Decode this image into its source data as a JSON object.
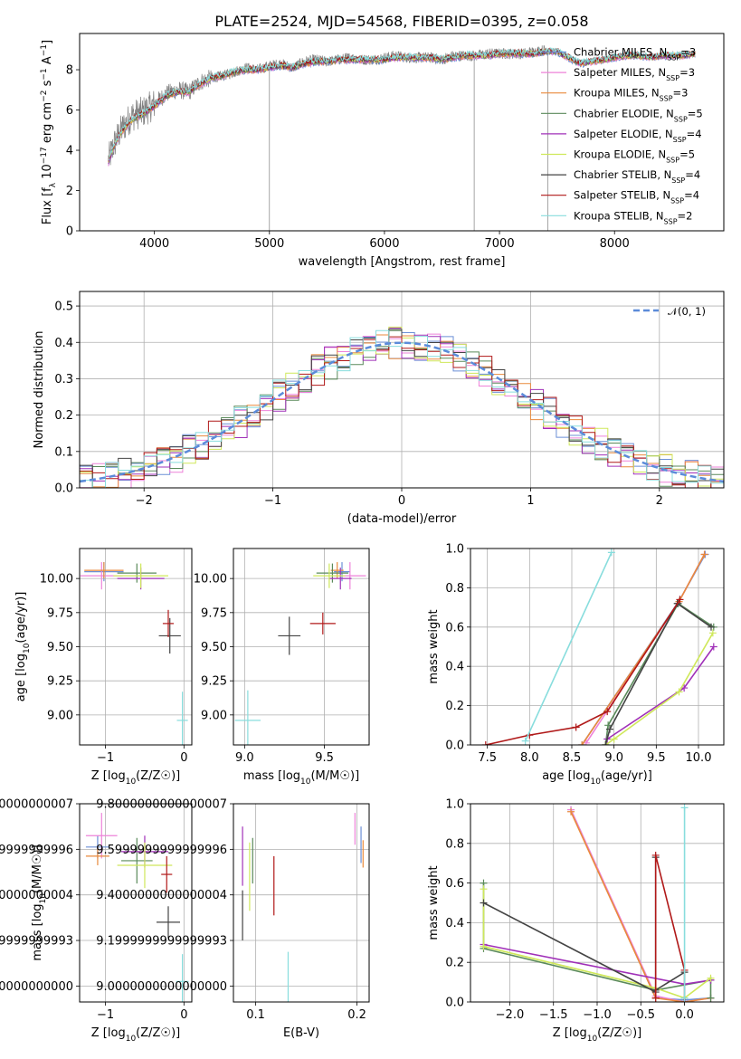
{
  "figure": {
    "title": "PLATE=2524, MJD=54568, FIBERID=0395, z=0.058"
  },
  "series": [
    {
      "name": "Chabrier MILES",
      "nssp": "3",
      "color": "#6b8fd6"
    },
    {
      "name": "Salpeter MILES",
      "nssp": "3",
      "color": "#ee82d9"
    },
    {
      "name": "Kroupa MILES",
      "nssp": "3",
      "color": "#e98a3c"
    },
    {
      "name": "Chabrier ELODIE",
      "nssp": "5",
      "color": "#5a8a5a"
    },
    {
      "name": "Salpeter ELODIE",
      "nssp": "4",
      "color": "#a030b8"
    },
    {
      "name": "Kroupa ELODIE",
      "nssp": "5",
      "color": "#cfe85a"
    },
    {
      "name": "Chabrier STELIB",
      "nssp": "4",
      "color": "#444444"
    },
    {
      "name": "Salpeter STELIB",
      "nssp": "4",
      "color": "#b01818"
    },
    {
      "name": "Kroupa STELIB",
      "nssp": "2",
      "color": "#88dddd"
    }
  ],
  "data_color": "#808080",
  "chart_data": [
    {
      "id": "spectrum",
      "type": "line",
      "xlabel": "wavelength [Angstrom, rest frame]",
      "ylabel": "Flux [f_λ 10^-17 erg cm^-2 s^-1 A^-1]",
      "xlim": [
        3350,
        8950
      ],
      "ylim": [
        0,
        9.8
      ],
      "xticks": [
        4000,
        5000,
        6000,
        7000,
        8000
      ],
      "yticks": [
        0,
        2,
        4,
        6,
        8
      ],
      "grid": false,
      "legend": "right",
      "data_curve": [
        [
          3600,
          3.5
        ],
        [
          3650,
          4.3
        ],
        [
          3700,
          4.9
        ],
        [
          3800,
          5.7
        ],
        [
          3900,
          5.9
        ],
        [
          4000,
          6.3
        ],
        [
          4100,
          6.8
        ],
        [
          4200,
          7.0
        ],
        [
          4300,
          6.9
        ],
        [
          4400,
          7.4
        ],
        [
          4500,
          7.6
        ],
        [
          4600,
          7.7
        ],
        [
          4700,
          7.9
        ],
        [
          4800,
          8.1
        ],
        [
          4900,
          8.0
        ],
        [
          5000,
          8.2
        ],
        [
          5100,
          8.3
        ],
        [
          5200,
          8.1
        ],
        [
          5300,
          8.4
        ],
        [
          5400,
          8.5
        ],
        [
          5500,
          8.4
        ],
        [
          5600,
          8.5
        ],
        [
          5700,
          8.6
        ],
        [
          5800,
          8.5
        ],
        [
          5900,
          8.5
        ],
        [
          6000,
          8.6
        ],
        [
          6100,
          8.7
        ],
        [
          6200,
          8.6
        ],
        [
          6300,
          8.6
        ],
        [
          6400,
          8.6
        ],
        [
          6500,
          8.5
        ],
        [
          6600,
          8.7
        ],
        [
          6700,
          8.7
        ],
        [
          6800,
          8.7
        ],
        [
          6900,
          8.8
        ],
        [
          7000,
          8.8
        ],
        [
          7100,
          8.8
        ],
        [
          7200,
          8.8
        ],
        [
          7300,
          8.9
        ],
        [
          7420,
          9.0
        ]
      ],
      "model_curve": [
        [
          3600,
          3.4
        ],
        [
          3650,
          4.2
        ],
        [
          3700,
          4.8
        ],
        [
          3800,
          5.5
        ],
        [
          3900,
          5.8
        ],
        [
          4000,
          6.2
        ],
        [
          4100,
          6.7
        ],
        [
          4200,
          6.9
        ],
        [
          4300,
          6.9
        ],
        [
          4400,
          7.3
        ],
        [
          4500,
          7.6
        ],
        [
          4600,
          7.7
        ],
        [
          4700,
          7.9
        ],
        [
          4800,
          8.0
        ],
        [
          4900,
          8.0
        ],
        [
          5000,
          8.1
        ],
        [
          5100,
          8.2
        ],
        [
          5200,
          8.1
        ],
        [
          5300,
          8.3
        ],
        [
          5400,
          8.4
        ],
        [
          5500,
          8.4
        ],
        [
          5600,
          8.5
        ],
        [
          5700,
          8.5
        ],
        [
          5800,
          8.5
        ],
        [
          5900,
          8.5
        ],
        [
          6000,
          8.5
        ],
        [
          6100,
          8.6
        ],
        [
          6200,
          8.6
        ],
        [
          6300,
          8.6
        ],
        [
          6400,
          8.6
        ],
        [
          6500,
          8.5
        ],
        [
          6600,
          8.6
        ],
        [
          6700,
          8.7
        ],
        [
          6800,
          8.7
        ],
        [
          6900,
          8.7
        ],
        [
          7000,
          8.8
        ],
        [
          7100,
          8.8
        ],
        [
          7200,
          8.8
        ],
        [
          7300,
          8.8
        ],
        [
          7400,
          8.9
        ],
        [
          7500,
          8.9
        ],
        [
          7600,
          8.6
        ],
        [
          7700,
          8.3
        ],
        [
          7800,
          8.4
        ],
        [
          7900,
          8.5
        ],
        [
          8000,
          8.6
        ],
        [
          8100,
          8.7
        ],
        [
          8200,
          8.7
        ],
        [
          8300,
          8.6
        ],
        [
          8400,
          8.7
        ],
        [
          8500,
          8.7
        ],
        [
          8600,
          8.7
        ],
        [
          8700,
          8.8
        ]
      ]
    },
    {
      "id": "residuals",
      "type": "line",
      "xlabel": "(data-model)/error",
      "ylabel": "Normed distribution",
      "xlim": [
        -2.5,
        2.5
      ],
      "ylim": [
        0,
        0.54
      ],
      "xticks": [
        -2,
        -1,
        0,
        1,
        2
      ],
      "yticks": [
        0.0,
        0.1,
        0.2,
        0.3,
        0.4,
        0.5
      ],
      "grid": true,
      "legend": "top-right",
      "reference_label": "𝒩(0, 1)",
      "reference_color": "#5b8bd9",
      "reference_mean": 0,
      "reference_sigma": 1
    },
    {
      "id": "age_vs_Z",
      "type": "scatter",
      "xlabel": "Z [log10(Z/Z☉)]",
      "ylabel": "age  [log10(age/yr)]",
      "xlim": [
        -1.33,
        0.1
      ],
      "ylim": [
        8.78,
        10.22
      ],
      "xticks": [
        -1,
        0
      ],
      "yticks": [
        9.0,
        9.25,
        9.5,
        9.75,
        10.0
      ],
      "grid": true,
      "points": [
        {
          "x": -1.02,
          "y": 10.05,
          "xerr": 0.25,
          "yerr": 0.07
        },
        {
          "x": -1.05,
          "y": 10.02,
          "xerr": 0.27,
          "yerr": 0.1
        },
        {
          "x": -1.02,
          "y": 10.06,
          "xerr": 0.25,
          "yerr": 0.06
        },
        {
          "x": -0.6,
          "y": 10.04,
          "xerr": 0.25,
          "yerr": 0.07
        },
        {
          "x": -0.55,
          "y": 10.0,
          "xerr": 0.3,
          "yerr": 0.08
        },
        {
          "x": -0.55,
          "y": 10.02,
          "xerr": 0.35,
          "yerr": 0.09
        },
        {
          "x": -0.18,
          "y": 9.58,
          "xerr": 0.14,
          "yerr": 0.13
        },
        {
          "x": -0.2,
          "y": 9.67,
          "xerr": 0.07,
          "yerr": 0.1
        },
        {
          "x": -0.02,
          "y": 8.96,
          "xerr": 0.07,
          "yerr": 0.21
        }
      ]
    },
    {
      "id": "age_vs_mass",
      "type": "scatter",
      "xlabel": "mass [log10(M/M☉)]",
      "ylabel": "",
      "xlim": [
        8.93,
        9.78
      ],
      "ylim": [
        8.78,
        10.22
      ],
      "xticks": [
        9.0,
        9.5
      ],
      "yticks": [
        9.0,
        9.25,
        9.5,
        9.75,
        10.0
      ],
      "grid": true,
      "points": [
        {
          "x": 9.61,
          "y": 10.05,
          "xerr": 0.05,
          "yerr": 0.07
        },
        {
          "x": 9.66,
          "y": 10.02,
          "xerr": 0.1,
          "yerr": 0.1
        },
        {
          "x": 9.58,
          "y": 10.06,
          "xerr": 0.04,
          "yerr": 0.06
        },
        {
          "x": 9.55,
          "y": 10.04,
          "xerr": 0.1,
          "yerr": 0.07
        },
        {
          "x": 9.6,
          "y": 10.0,
          "xerr": 0.07,
          "yerr": 0.08
        },
        {
          "x": 9.53,
          "y": 10.02,
          "xerr": 0.1,
          "yerr": 0.09
        },
        {
          "x": 9.28,
          "y": 9.58,
          "xerr": 0.07,
          "yerr": 0.14
        },
        {
          "x": 9.49,
          "y": 9.67,
          "xerr": 0.08,
          "yerr": 0.08
        },
        {
          "x": 9.02,
          "y": 8.96,
          "xerr": 0.08,
          "yerr": 0.22
        }
      ]
    },
    {
      "id": "weight_vs_age",
      "type": "line",
      "xlabel": "age  [log10(age/yr)]",
      "ylabel": "mass weight",
      "xlim": [
        7.3,
        10.3
      ],
      "ylim": [
        0,
        1.0
      ],
      "xticks": [
        7.5,
        8.0,
        8.5,
        9.0,
        9.5,
        10.0
      ],
      "yticks": [
        0.0,
        0.2,
        0.4,
        0.6,
        0.8,
        1.0
      ],
      "grid": true,
      "series": [
        [
          [
            8.62,
            0.0
          ],
          [
            9.78,
            0.74
          ],
          [
            10.08,
            0.97
          ]
        ],
        [
          [
            8.67,
            0.01
          ],
          [
            9.77,
            0.73
          ],
          [
            10.07,
            0.97
          ]
        ],
        [
          [
            8.62,
            0.0
          ],
          [
            9.77,
            0.73
          ],
          [
            10.07,
            0.97
          ]
        ],
        [
          [
            8.9,
            0.0
          ],
          [
            8.93,
            0.1
          ],
          [
            9.76,
            0.72
          ],
          [
            10.18,
            0.6
          ]
        ],
        [
          [
            8.92,
            0.03
          ],
          [
            9.83,
            0.29
          ],
          [
            10.18,
            0.5
          ]
        ],
        [
          [
            8.9,
            0.0
          ],
          [
            9.0,
            0.03
          ],
          [
            9.77,
            0.27
          ],
          [
            10.17,
            0.57
          ]
        ],
        [
          [
            8.9,
            0.0
          ],
          [
            8.95,
            0.08
          ],
          [
            9.75,
            0.72
          ],
          [
            10.15,
            0.6
          ]
        ],
        [
          [
            7.48,
            0.0
          ],
          [
            8.0,
            0.05
          ],
          [
            8.55,
            0.09
          ],
          [
            8.92,
            0.17
          ],
          [
            9.78,
            0.74
          ]
        ],
        [
          [
            7.95,
            0.02
          ],
          [
            8.97,
            0.98
          ]
        ]
      ]
    },
    {
      "id": "mass_vs_Z",
      "type": "scatter",
      "xlabel": "Z [log10(Z/Z☉)]",
      "ylabel": "mass [log10(M/M☉)]",
      "xlim": [
        -1.33,
        0.1
      ],
      "ylim": [
        8.93,
        9.8
      ],
      "xticks": [
        -1,
        0
      ],
      "yticks": [
        9.0,
        9.2,
        9.4,
        9.6,
        9.8
      ],
      "grid": true,
      "points": [
        {
          "x": -1.1,
          "y": 9.61,
          "xerr": 0.15,
          "yerr": 0.05
        },
        {
          "x": -1.05,
          "y": 9.66,
          "xerr": 0.2,
          "yerr": 0.1
        },
        {
          "x": -1.1,
          "y": 9.57,
          "xerr": 0.15,
          "yerr": 0.04
        },
        {
          "x": -0.6,
          "y": 9.55,
          "xerr": 0.2,
          "yerr": 0.1
        },
        {
          "x": -0.5,
          "y": 9.59,
          "xerr": 0.3,
          "yerr": 0.07
        },
        {
          "x": -0.5,
          "y": 9.53,
          "xerr": 0.35,
          "yerr": 0.1
        },
        {
          "x": -0.2,
          "y": 9.28,
          "xerr": 0.15,
          "yerr": 0.07
        },
        {
          "x": -0.22,
          "y": 9.49,
          "xerr": 0.07,
          "yerr": 0.08
        },
        {
          "x": -0.02,
          "y": 9.02,
          "xerr": 0.08,
          "yerr": 0.12
        }
      ]
    },
    {
      "id": "mass_vs_ebv",
      "type": "scatter",
      "xlabel": "E(B-V)",
      "ylabel": "",
      "xlim": [
        0.078,
        0.212
      ],
      "ylim": [
        8.93,
        9.8
      ],
      "xticks": [
        0.1,
        0.2
      ],
      "yticks": [
        9.0,
        9.2,
        9.4,
        9.6,
        9.8
      ],
      "grid": true,
      "points": [
        {
          "x": 0.204,
          "y": 9.62,
          "xerr": 0.0,
          "yerr": 0.08
        },
        {
          "x": 0.198,
          "y": 9.69,
          "xerr": 0.0,
          "yerr": 0.07
        },
        {
          "x": 0.206,
          "y": 9.58,
          "xerr": 0.0,
          "yerr": 0.06
        },
        {
          "x": 0.097,
          "y": 9.55,
          "xerr": 0.0,
          "yerr": 0.1
        },
        {
          "x": 0.087,
          "y": 9.57,
          "xerr": 0.0,
          "yerr": 0.13
        },
        {
          "x": 0.094,
          "y": 9.48,
          "xerr": 0.0,
          "yerr": 0.15
        },
        {
          "x": 0.087,
          "y": 9.31,
          "xerr": 0.0,
          "yerr": 0.11
        },
        {
          "x": 0.118,
          "y": 9.44,
          "xerr": 0.0,
          "yerr": 0.13
        },
        {
          "x": 0.132,
          "y": 9.03,
          "xerr": 0.0,
          "yerr": 0.12
        }
      ]
    },
    {
      "id": "weight_vs_Z",
      "type": "line",
      "xlabel": "Z [log10(Z/Z☉)]",
      "ylabel": "mass weight",
      "xlim": [
        -2.45,
        0.45
      ],
      "ylim": [
        0,
        1.0
      ],
      "xticks": [
        -2.0,
        -1.5,
        -1.0,
        -0.5,
        0.0
      ],
      "yticks": [
        0.0,
        0.2,
        0.4,
        0.6,
        0.8,
        1.0
      ],
      "grid": true,
      "series": [
        [
          [
            -1.3,
            0.97
          ],
          [
            -0.33,
            0.02
          ],
          [
            0.0,
            0.01
          ],
          [
            0.3,
            0.02
          ]
        ],
        [
          [
            -1.3,
            0.97
          ],
          [
            -0.33,
            0.03
          ],
          [
            0.0,
            0.0
          ],
          [
            0.3,
            0.02
          ]
        ],
        [
          [
            -1.3,
            0.96
          ],
          [
            -0.33,
            0.02
          ],
          [
            0.0,
            0.0
          ],
          [
            0.3,
            0.02
          ]
        ],
        [
          [
            -2.3,
            0.6
          ],
          [
            -2.3,
            0.27
          ],
          [
            -0.33,
            0.06
          ],
          [
            0.3,
            0.11
          ],
          [
            0.3,
            0.02
          ]
        ],
        [
          [
            -2.3,
            0.29
          ],
          [
            0.0,
            0.09
          ],
          [
            0.3,
            0.11
          ]
        ],
        [
          [
            -2.3,
            0.57
          ],
          [
            -2.3,
            0.28
          ],
          [
            -0.33,
            0.07
          ],
          [
            0.0,
            0.02
          ],
          [
            0.3,
            0.12
          ]
        ],
        [
          [
            -2.3,
            0.5
          ],
          [
            -0.33,
            0.05
          ],
          [
            -0.33,
            0.73
          ],
          [
            -0.33,
            0.06
          ],
          [
            0.0,
            0.15
          ]
        ],
        [
          [
            -0.33,
            0.02
          ],
          [
            -0.33,
            0.74
          ],
          [
            0.0,
            0.16
          ],
          [
            0.0,
            0.0
          ]
        ],
        [
          [
            0.0,
            0.02
          ],
          [
            0.0,
            0.98
          ]
        ]
      ]
    }
  ]
}
